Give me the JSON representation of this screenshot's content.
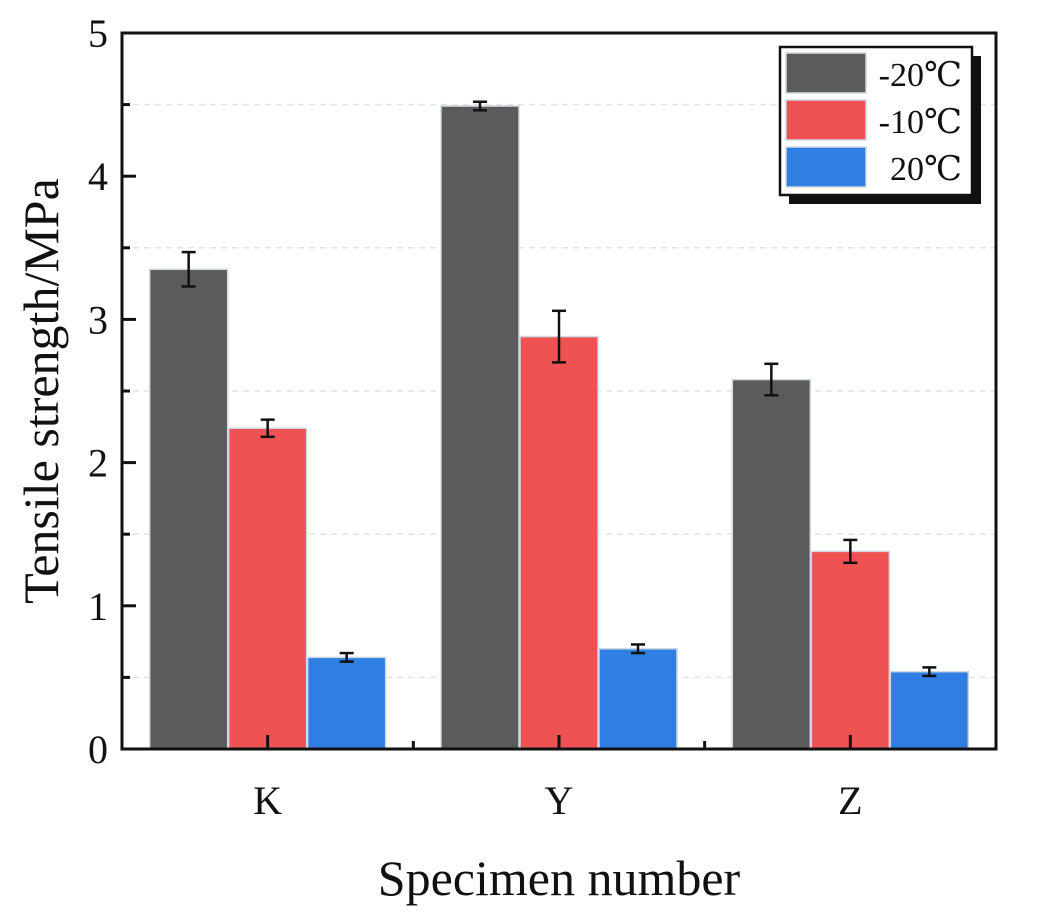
{
  "chart_data": {
    "type": "bar",
    "title": "",
    "xlabel": "Specimen number",
    "ylabel": "Tensile strength/MPa",
    "categories": [
      "K",
      "Y",
      "Z"
    ],
    "ylim": [
      0,
      5
    ],
    "yticks": [
      {
        "value": 0,
        "label": "0"
      },
      {
        "value": 1,
        "label": "1"
      },
      {
        "value": 2,
        "label": "2"
      },
      {
        "value": 3,
        "label": "3"
      },
      {
        "value": 4,
        "label": "4"
      },
      {
        "value": 5,
        "label": "5"
      }
    ],
    "grid": "horizontal dashed",
    "legend_position": "top-right",
    "series": [
      {
        "name": "-20℃",
        "color": "#5b5b5b",
        "values": [
          3.35,
          4.49,
          2.58
        ],
        "errors": [
          0.12,
          0.03,
          0.11
        ]
      },
      {
        "name": "-10℃",
        "color": "#ef5252",
        "values": [
          2.24,
          2.88,
          1.38
        ],
        "errors": [
          0.06,
          0.18,
          0.08
        ]
      },
      {
        "name": "20℃",
        "color": "#2f7fe3",
        "values": [
          0.64,
          0.7,
          0.54
        ],
        "errors": [
          0.03,
          0.03,
          0.03
        ]
      }
    ]
  }
}
